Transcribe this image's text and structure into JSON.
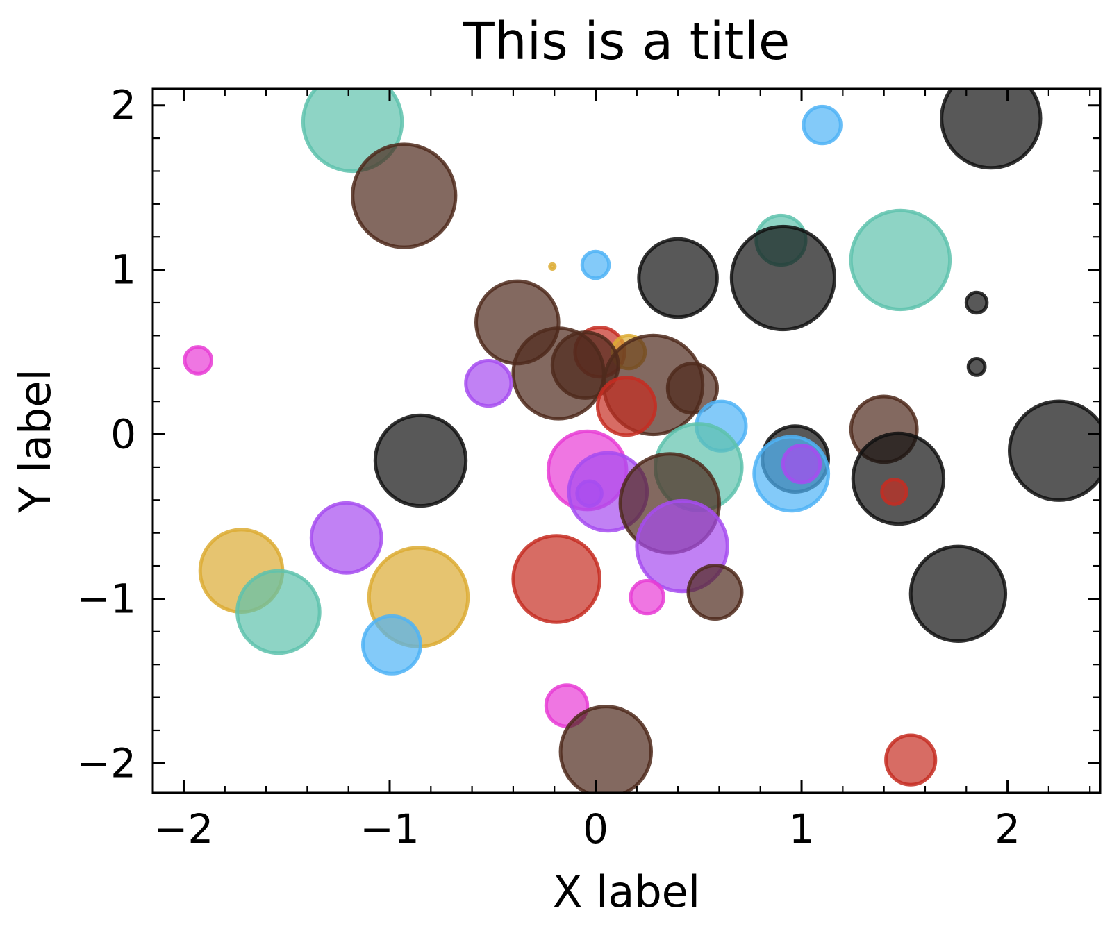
{
  "chart_data": {
    "type": "scatter",
    "title": "This is a title",
    "xlabel": "X label",
    "ylabel": "Y label",
    "xlim": [
      -2.15,
      2.45
    ],
    "ylim": [
      -2.18,
      2.1
    ],
    "xticks": [
      -2,
      -1,
      0,
      1,
      2
    ],
    "yticks": [
      -2,
      -1,
      0,
      1,
      2
    ],
    "xtick_labels": [
      "−2",
      "−1",
      "0",
      "1",
      "2"
    ],
    "ytick_labels": [
      "−2",
      "−1",
      "0",
      "1",
      "2"
    ],
    "grid": false,
    "marker_opacity": 0.7,
    "colors": {
      "teal": "#5ec2ad",
      "brown": "#4f2a1c",
      "blue": "#4fb3f6",
      "black": "#111111",
      "gold": "#dcab33",
      "magenta": "#e83cd5",
      "purple": "#a64cf0",
      "red": "#c62d22"
    },
    "points": [
      {
        "x": -1.18,
        "y": 1.9,
        "s": 0.24,
        "c": "teal"
      },
      {
        "x": -0.93,
        "y": 1.45,
        "s": 0.25,
        "c": "brown"
      },
      {
        "x": 1.1,
        "y": 1.88,
        "s": 0.09,
        "c": "blue"
      },
      {
        "x": 1.92,
        "y": 1.92,
        "s": 0.24,
        "c": "black"
      },
      {
        "x": 0.9,
        "y": 1.18,
        "s": 0.12,
        "c": "teal"
      },
      {
        "x": 1.48,
        "y": 1.06,
        "s": 0.24,
        "c": "teal"
      },
      {
        "x": 0.0,
        "y": 1.03,
        "s": 0.065,
        "c": "blue"
      },
      {
        "x": -0.21,
        "y": 1.02,
        "s": 0.012,
        "c": "gold"
      },
      {
        "x": 0.4,
        "y": 0.95,
        "s": 0.19,
        "c": "black"
      },
      {
        "x": 0.91,
        "y": 0.95,
        "s": 0.25,
        "c": "black"
      },
      {
        "x": 1.85,
        "y": 0.8,
        "s": 0.05,
        "c": "black"
      },
      {
        "x": 1.85,
        "y": 0.41,
        "s": 0.04,
        "c": "black"
      },
      {
        "x": -1.93,
        "y": 0.45,
        "s": 0.065,
        "c": "magenta"
      },
      {
        "x": -0.38,
        "y": 0.68,
        "s": 0.2,
        "c": "brown"
      },
      {
        "x": 0.02,
        "y": 0.5,
        "s": 0.12,
        "c": "red"
      },
      {
        "x": 0.16,
        "y": 0.5,
        "s": 0.08,
        "c": "gold"
      },
      {
        "x": -0.18,
        "y": 0.37,
        "s": 0.22,
        "c": "brown"
      },
      {
        "x": -0.05,
        "y": 0.42,
        "s": 0.16,
        "c": "brown"
      },
      {
        "x": 0.28,
        "y": 0.3,
        "s": 0.24,
        "c": "brown"
      },
      {
        "x": 0.47,
        "y": 0.28,
        "s": 0.12,
        "c": "brown"
      },
      {
        "x": 0.15,
        "y": 0.17,
        "s": 0.14,
        "c": "red"
      },
      {
        "x": -0.52,
        "y": 0.31,
        "s": 0.11,
        "c": "purple"
      },
      {
        "x": 0.61,
        "y": 0.05,
        "s": 0.12,
        "c": "blue"
      },
      {
        "x": 0.5,
        "y": -0.2,
        "s": 0.21,
        "c": "teal"
      },
      {
        "x": -0.85,
        "y": -0.16,
        "s": 0.22,
        "c": "black"
      },
      {
        "x": 0.97,
        "y": -0.15,
        "s": 0.16,
        "c": "black"
      },
      {
        "x": 0.95,
        "y": -0.24,
        "s": 0.18,
        "c": "blue"
      },
      {
        "x": 1.0,
        "y": -0.18,
        "s": 0.09,
        "c": "purple"
      },
      {
        "x": 1.4,
        "y": 0.03,
        "s": 0.16,
        "c": "brown"
      },
      {
        "x": 1.47,
        "y": -0.27,
        "s": 0.22,
        "c": "black"
      },
      {
        "x": 1.45,
        "y": -0.35,
        "s": 0.06,
        "c": "red"
      },
      {
        "x": 2.25,
        "y": -0.1,
        "s": 0.24,
        "c": "black"
      },
      {
        "x": -0.04,
        "y": -0.22,
        "s": 0.19,
        "c": "magenta"
      },
      {
        "x": 0.06,
        "y": -0.35,
        "s": 0.19,
        "c": "purple"
      },
      {
        "x": -0.03,
        "y": -0.36,
        "s": 0.06,
        "c": "purple"
      },
      {
        "x": 0.36,
        "y": -0.42,
        "s": 0.24,
        "c": "brown"
      },
      {
        "x": 0.42,
        "y": -0.68,
        "s": 0.22,
        "c": "purple"
      },
      {
        "x": 0.58,
        "y": -0.96,
        "s": 0.13,
        "c": "brown"
      },
      {
        "x": 0.25,
        "y": -0.99,
        "s": 0.08,
        "c": "magenta"
      },
      {
        "x": -0.19,
        "y": -0.88,
        "s": 0.21,
        "c": "red"
      },
      {
        "x": -1.21,
        "y": -0.63,
        "s": 0.17,
        "c": "purple"
      },
      {
        "x": -1.72,
        "y": -0.83,
        "s": 0.2,
        "c": "gold"
      },
      {
        "x": -1.54,
        "y": -1.08,
        "s": 0.2,
        "c": "teal"
      },
      {
        "x": -0.86,
        "y": -0.99,
        "s": 0.24,
        "c": "gold"
      },
      {
        "x": -0.99,
        "y": -1.28,
        "s": 0.14,
        "c": "blue"
      },
      {
        "x": 1.76,
        "y": -0.97,
        "s": 0.23,
        "c": "black"
      },
      {
        "x": -0.14,
        "y": -1.65,
        "s": 0.1,
        "c": "magenta"
      },
      {
        "x": 0.05,
        "y": -1.93,
        "s": 0.22,
        "c": "brown"
      },
      {
        "x": 1.53,
        "y": -1.98,
        "s": 0.12,
        "c": "red"
      }
    ]
  }
}
